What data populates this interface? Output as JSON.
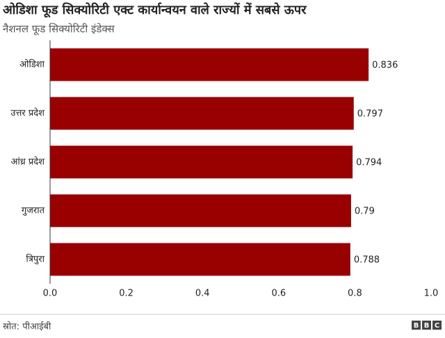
{
  "chart_data": {
    "type": "bar",
    "orientation": "horizontal",
    "title": "ओडिशा फूड सिक्योरिटी एक्ट कार्यान्वयन वाले राज्यों में सबसे ऊपर",
    "subtitle": "नैशनल फूड सिक्योरिटी इंडेक्स",
    "categories": [
      "ओडिशा",
      "उत्तर प्रदेश",
      "आंध्र प्रदेश",
      "गुजरात",
      "त्रिपुरा"
    ],
    "values": [
      0.836,
      0.797,
      0.794,
      0.79,
      0.788
    ],
    "color": "#990000",
    "xlim": [
      0,
      1
    ],
    "xticks": [
      {
        "value": 0,
        "label": "0.0"
      },
      0.2,
      0.4,
      0.6,
      0.8,
      {
        "value": 1,
        "label": "1.0"
      }
    ],
    "source": "स्रोत: पीआईबी",
    "logo": [
      "B",
      "B",
      "C"
    ]
  }
}
